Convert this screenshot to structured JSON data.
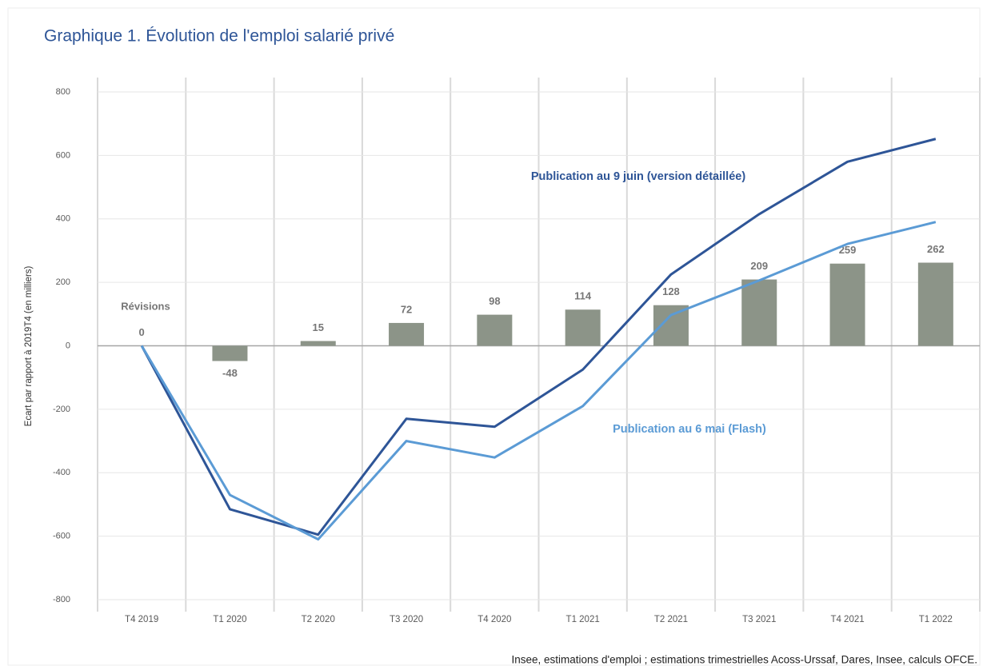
{
  "chart_data": {
    "type": "bar",
    "title": "Graphique 1. Évolution de l'emploi salarié privé",
    "y_label": "Ecart par rapport à 2019T4 (en milliers)",
    "source": "Insee, estimations d'emploi ; estimations trimestrielles Acoss-Urssaf, Dares, Insee, calculs OFCE.",
    "categories": [
      "T4 2019",
      "T1 2020",
      "T2 2020",
      "T3 2020",
      "T4 2020",
      "T1 2021",
      "T2 2021",
      "T3 2021",
      "T4 2021",
      "T1 2022"
    ],
    "series": [
      {
        "name": "Révisions",
        "type": "bar",
        "color": "#8c9488",
        "values": [
          0,
          -48,
          15,
          72,
          98,
          114,
          128,
          209,
          259,
          262
        ]
      },
      {
        "name": "Publication au 9 juin (version détaillée)",
        "type": "line",
        "color": "#2e5597",
        "values": [
          0,
          -515,
          -595,
          -230,
          -255,
          -75,
          225,
          415,
          580,
          652
        ]
      },
      {
        "name": "Publication au 6 mai (Flash)",
        "type": "line",
        "color": "#5b9bd5",
        "values": [
          0,
          -470,
          -610,
          -300,
          -352,
          -190,
          97,
          206,
          321,
          390
        ]
      }
    ],
    "ylim": [
      -800,
      800
    ],
    "yticks": [
      -800,
      -600,
      -400,
      -200,
      0,
      200,
      400,
      600,
      800
    ],
    "grid": true
  }
}
